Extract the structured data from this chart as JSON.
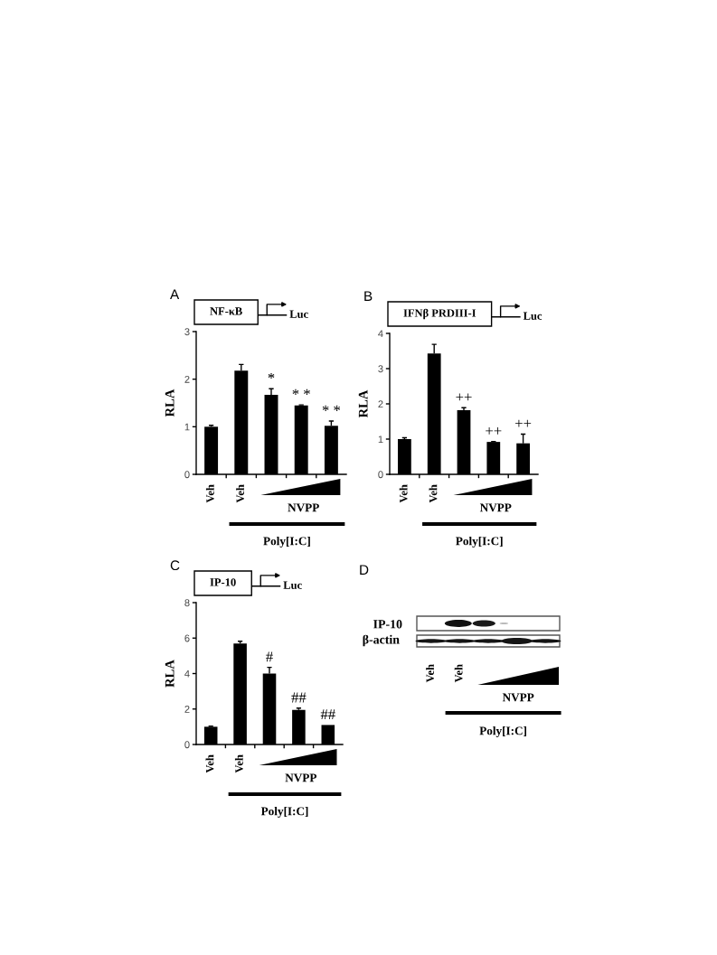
{
  "chart_data": [
    {
      "type": "bar",
      "title": "A",
      "ylabel": "RLA",
      "categories": [
        "Veh",
        "Veh",
        null,
        null,
        null
      ],
      "series": [
        {
          "color": "#000000",
          "values": [
            1.0,
            2.18,
            1.67,
            1.45,
            1.02
          ],
          "errors": [
            0.03,
            0.13,
            0.13,
            0.01,
            0.1
          ],
          "value_labels": [
            null,
            null,
            "*",
            "* *",
            "* *"
          ]
        }
      ],
      "ylim": [
        0,
        3
      ],
      "yticks": [
        0,
        1,
        2,
        3
      ],
      "annotations": [
        "NF-κB",
        "Luc",
        "NVPP",
        "Poly[I:C]"
      ]
    },
    {
      "type": "bar",
      "title": "B",
      "ylabel": "RLA",
      "categories": [
        "Veh",
        "Veh",
        null,
        null,
        null
      ],
      "series": [
        {
          "color": "#000000",
          "values": [
            1.0,
            3.43,
            1.82,
            0.92,
            0.88
          ],
          "errors": [
            0.04,
            0.26,
            0.07,
            0.01,
            0.26
          ],
          "value_labels": [
            null,
            null,
            "++",
            "++",
            "++"
          ]
        }
      ],
      "ylim": [
        0,
        4
      ],
      "yticks": [
        0,
        1,
        2,
        3,
        4
      ],
      "annotations": [
        "IFNβ PRDIII-I",
        "Luc",
        "NVPP",
        "Poly[I:C]"
      ]
    },
    {
      "type": "bar",
      "title": "C",
      "ylabel": "RLA",
      "categories": [
        "Veh",
        "Veh",
        null,
        null,
        null
      ],
      "series": [
        {
          "color": "#000000",
          "values": [
            1.0,
            5.7,
            4.0,
            1.95,
            1.1
          ],
          "errors": [
            0.03,
            0.12,
            0.35,
            0.1,
            null
          ],
          "value_labels": [
            null,
            null,
            "#",
            "##",
            "##"
          ]
        }
      ],
      "ylim": [
        0,
        8
      ],
      "yticks": [
        0,
        2,
        4,
        6,
        8
      ],
      "annotations": [
        "IP-10",
        "Luc",
        "NVPP",
        "Poly[I:C]"
      ]
    },
    {
      "type": "other",
      "title": "D",
      "categories": [
        "Veh",
        "Veh",
        null,
        null,
        null
      ],
      "annotations": [
        "IP-10",
        "β-actin",
        "NVPP",
        "Poly[I:C]"
      ]
    }
  ]
}
